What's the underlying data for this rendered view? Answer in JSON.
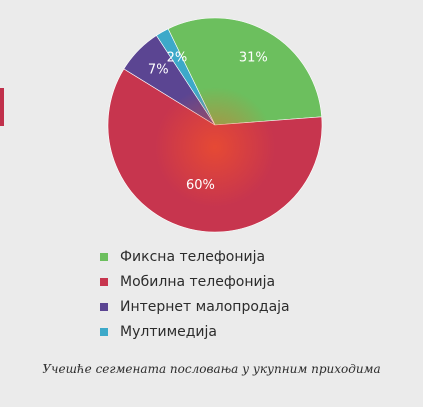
{
  "chart_data": {
    "type": "pie",
    "categories": [
      "Фиксна телефонија",
      "Мобилна телефонија",
      "Интернет малопродаја",
      "Мултимедија"
    ],
    "values": [
      31,
      60,
      7,
      2
    ],
    "labels": [
      "31%",
      "60%",
      "7%",
      "2%"
    ],
    "colors": [
      "#6cbf5e",
      "#c7354e",
      "#5b4592",
      "#3da9c9"
    ],
    "legend_position": "bottom"
  },
  "caption": "Учешће сегмената пословања у укупним приходима"
}
